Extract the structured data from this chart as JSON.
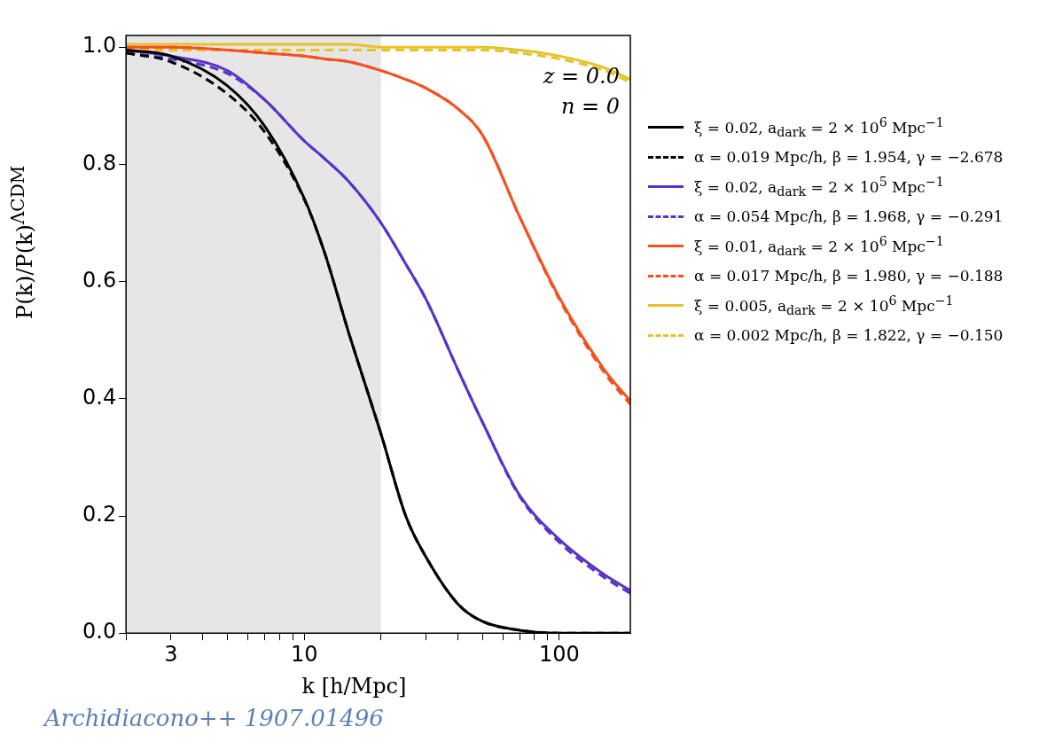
{
  "chart_data": {
    "type": "line",
    "xlabel": "k [h/Mpc]",
    "ylabel": "P(k)/P(k)$^{ΛCDM}$",
    "log": "x",
    "xlim": [
      2,
      190
    ],
    "xticks": [
      {
        "value": 2,
        "label": null
      },
      3,
      {
        "value": 4,
        "label": null
      },
      {
        "value": 5,
        "label": null
      },
      {
        "value": 6,
        "label": null
      },
      {
        "value": 7,
        "label": null
      },
      {
        "value": 8,
        "label": null
      },
      {
        "value": 9,
        "label": null
      },
      10,
      {
        "value": 20,
        "label": null
      },
      {
        "value": 30,
        "label": null
      },
      {
        "value": 40,
        "label": null
      },
      {
        "value": 50,
        "label": null
      },
      {
        "value": 60,
        "label": null
      },
      {
        "value": 70,
        "label": null
      },
      {
        "value": 80,
        "label": null
      },
      {
        "value": 90,
        "label": null
      },
      100
    ],
    "ylim": [
      0,
      1.02
    ],
    "yticks": [
      {
        "value": 0,
        "label": "0.0"
      },
      0.2,
      0.4,
      0.6,
      0.8,
      {
        "value": 1,
        "label": "1.0"
      }
    ],
    "grid": false,
    "legend": "right",
    "marker": "none",
    "x": [
      2,
      3,
      5,
      7,
      10,
      12,
      15,
      20,
      25,
      30,
      40,
      50,
      70,
      100,
      150,
      190
    ],
    "series": [
      {
        "name": "ξ = 0.02, a$_{dark}$ = 2 × 10$^{6}$ Mpc$^{−1}$",
        "color": "#000000",
        "line_style": "solid",
        "values": [
          0.995,
          0.985,
          0.934,
          0.865,
          0.742,
          0.65,
          0.51,
          0.34,
          0.2,
          0.13,
          0.05,
          0.02,
          0.005,
          0,
          0,
          0
        ]
      },
      {
        "name": "α = 0.019 Mpc/h, β = 1.954, γ = −2.678",
        "color": "#000000",
        "line_style": "dashed",
        "values": [
          0.99,
          0.975,
          0.92,
          0.855,
          0.74,
          0.65,
          0.51,
          0.34,
          0.2,
          0.13,
          0.05,
          0.02,
          0.005,
          0,
          0,
          0
        ]
      },
      {
        "name": "ξ = 0.02, a$_{dark}$ = 2 × 10$^{5}$ Mpc$^{−1}$",
        "color": "#5a32c8",
        "line_style": "solid",
        "values": [
          0.995,
          0.985,
          0.96,
          0.91,
          0.84,
          0.81,
          0.77,
          0.7,
          0.63,
          0.57,
          0.45,
          0.36,
          0.235,
          0.16,
          0.1,
          0.073
        ]
      },
      {
        "name": "α = 0.054 Mpc/h, β = 1.968, γ = −0.291",
        "color": "#5a32c8",
        "line_style": "dashed",
        "values": [
          0.99,
          0.98,
          0.955,
          0.91,
          0.84,
          0.81,
          0.77,
          0.7,
          0.63,
          0.57,
          0.45,
          0.36,
          0.233,
          0.155,
          0.095,
          0.068
        ]
      },
      {
        "name": "ξ = 0.01, a$_{dark}$ = 2 × 10$^{6}$ Mpc$^{−1}$",
        "color": "#f4511e",
        "line_style": "solid",
        "values": [
          1.0,
          1.0,
          0.995,
          0.99,
          0.985,
          0.98,
          0.975,
          0.96,
          0.945,
          0.93,
          0.895,
          0.85,
          0.71,
          0.573,
          0.45,
          0.396
        ]
      },
      {
        "name": "α = 0.017 Mpc/h, β = 1.980, γ = −0.188",
        "color": "#f4511e",
        "line_style": "dashed",
        "values": [
          1.0,
          1.0,
          0.995,
          0.99,
          0.985,
          0.98,
          0.975,
          0.96,
          0.945,
          0.93,
          0.895,
          0.85,
          0.71,
          0.57,
          0.445,
          0.39
        ]
      },
      {
        "name": "ξ = 0.005, a$_{dark}$ = 2 × 10$^{6}$ Mpc$^{−1}$",
        "color": "#e6c229",
        "line_style": "solid",
        "values": [
          1.005,
          1.005,
          1.005,
          1.005,
          1.005,
          1.005,
          1.005,
          1.0,
          1.0,
          1.0,
          1.0,
          1.0,
          0.995,
          0.985,
          0.965,
          0.945
        ]
      },
      {
        "name": "α = 0.002 Mpc/h, β = 1.822, γ = −0.150",
        "color": "#e6c229",
        "line_style": "dashed",
        "values": [
          0.995,
          0.995,
          0.995,
          0.995,
          0.995,
          0.995,
          0.995,
          0.995,
          0.995,
          0.995,
          0.995,
          0.995,
          0.99,
          0.98,
          0.96,
          0.94
        ]
      }
    ],
    "bands": [
      {
        "axis": "x",
        "from": 2,
        "to": 20,
        "color": "#e6e6e6"
      }
    ],
    "annotations": [
      "z = 0.0",
      "n = 0",
      "Archidiacono++ 1907.01496"
    ]
  }
}
